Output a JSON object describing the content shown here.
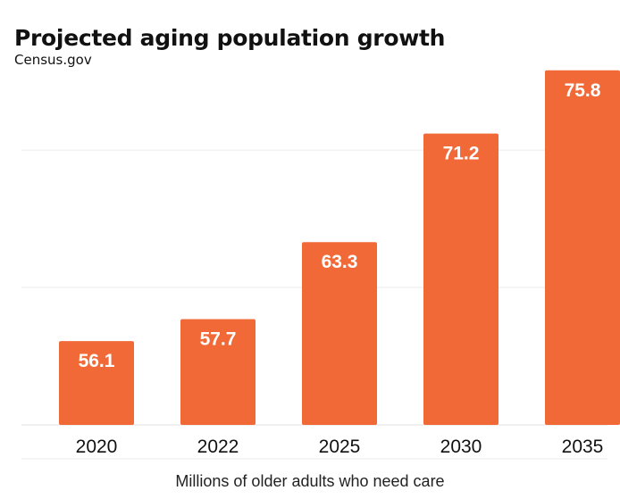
{
  "chart_data": {
    "type": "bar",
    "title": "Projected aging population growth",
    "subtitle": "Census.gov",
    "categories": [
      "2020",
      "2022",
      "2025",
      "2030",
      "2035"
    ],
    "values": [
      56.1,
      57.7,
      63.3,
      71.2,
      75.8
    ],
    "xlabel": "Millions of older adults who need care",
    "ylabel": "",
    "ylim": [
      50,
      76.5
    ],
    "grid": true,
    "gridlines": [
      50,
      60,
      70
    ],
    "legend": "none",
    "colors": {
      "bar": "#F26938",
      "grid": "#EBEBEB",
      "text": "#111111"
    }
  }
}
